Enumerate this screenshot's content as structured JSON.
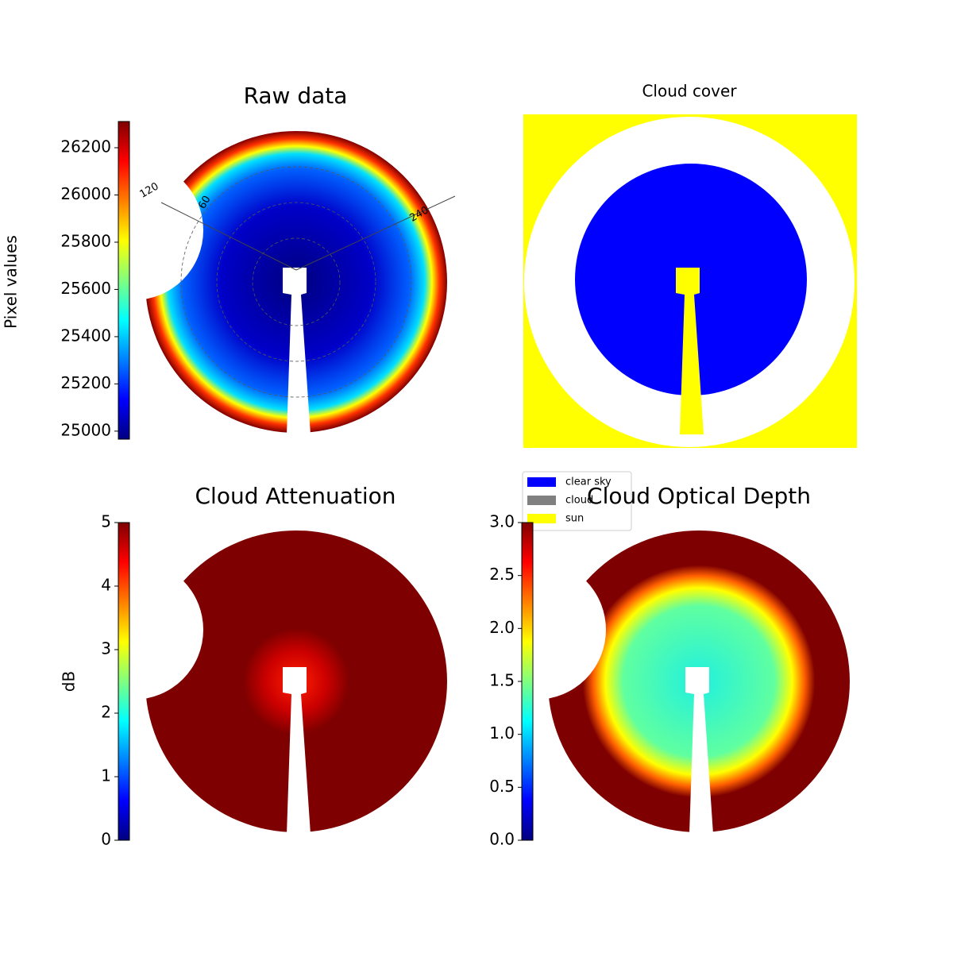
{
  "chart_data": [
    {
      "type": "heatmap",
      "title": "Raw data",
      "colorbar_label": "Pixel values",
      "colormap": "jet",
      "ylim": [
        24966,
        26311
      ],
      "yticks": [
        25000,
        25200,
        25400,
        25600,
        25800,
        26000,
        26200
      ],
      "angle_labels": [
        "120",
        "60",
        "240"
      ]
    },
    {
      "type": "categorical",
      "title": "Cloud cover",
      "legend": [
        {
          "name": "clear sky",
          "color": "#0000ff"
        },
        {
          "name": "cloud",
          "color": "#808080"
        },
        {
          "name": "sun",
          "color": "#ffff00"
        }
      ]
    },
    {
      "type": "heatmap",
      "title": "Cloud Attenuation",
      "colorbar_label": "dB",
      "colormap": "jet",
      "ylim": [
        0,
        5
      ],
      "yticks": [
        0,
        1,
        2,
        3,
        4,
        5
      ]
    },
    {
      "type": "heatmap",
      "title": "Cloud Optical Depth",
      "colormap": "jet",
      "ylim": [
        0,
        3
      ],
      "yticks": [
        {
          "value": 0,
          "label": "0.0"
        },
        {
          "value": 0.5,
          "label": "0.5"
        },
        {
          "value": 1,
          "label": "1.0"
        },
        {
          "value": 1.5,
          "label": "1.5"
        },
        {
          "value": 2,
          "label": "2.0"
        },
        {
          "value": 2.5,
          "label": "2.5"
        },
        {
          "value": 3,
          "label": "3.0"
        }
      ]
    }
  ]
}
